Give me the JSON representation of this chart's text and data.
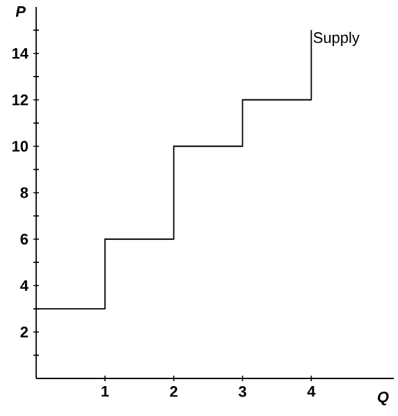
{
  "chart_data": {
    "type": "step",
    "xlabel": "Q",
    "ylabel": "P",
    "series": [
      {
        "name": "Supply",
        "color": "#000000",
        "x": [
          0,
          1,
          2,
          3,
          4,
          4
        ],
        "values": [
          3,
          6,
          10,
          12,
          12,
          15
        ]
      }
    ],
    "xlim": [
      0,
      5.2
    ],
    "ylim": [
      0,
      16
    ],
    "xticks": [
      1,
      2,
      3,
      4
    ],
    "yticks": [
      {
        "value": 1,
        "label": null
      },
      2,
      {
        "value": 3,
        "label": null
      },
      4,
      {
        "value": 5,
        "label": null
      },
      6,
      {
        "value": 7,
        "label": null
      },
      8,
      {
        "value": 9,
        "label": null
      },
      10,
      {
        "value": 11,
        "label": null
      },
      12,
      {
        "value": 13,
        "label": null
      },
      14,
      {
        "value": 15,
        "label": null
      }
    ],
    "grid": false,
    "legend": false,
    "marker": "none",
    "line_style": "solid"
  }
}
